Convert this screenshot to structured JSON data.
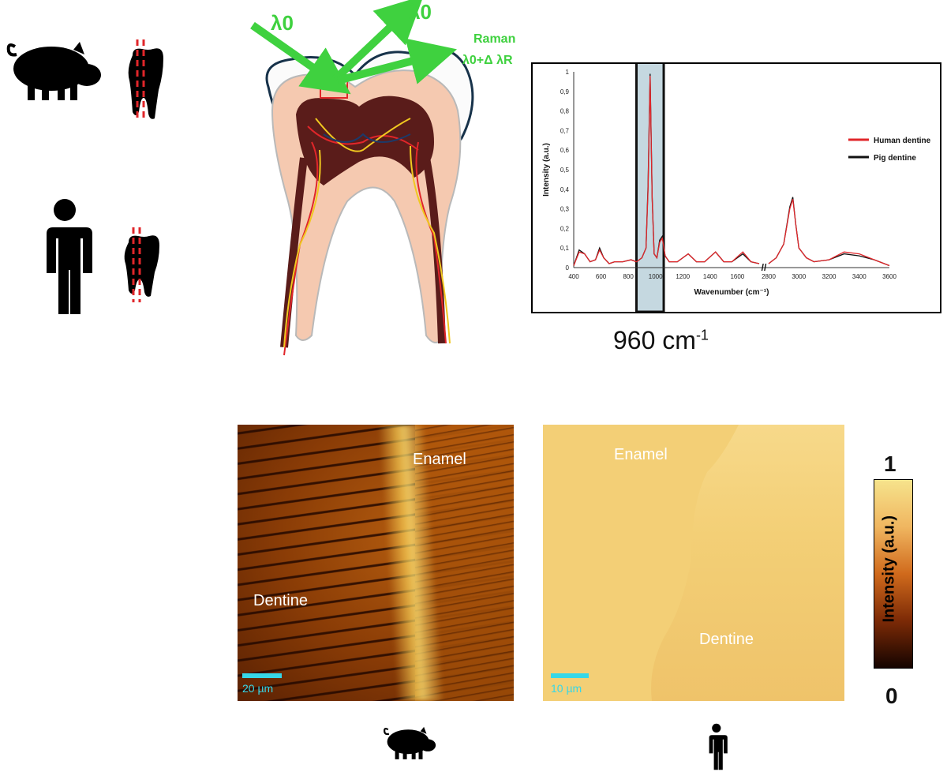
{
  "laser": {
    "incident": "λ0",
    "reflected": "λ0",
    "raman_label": "Raman",
    "raman_shift": "λ0+Δ λR"
  },
  "chart_data": {
    "type": "line",
    "xlabel": "Wavenumber (cm⁻¹)",
    "ylabel": "Intensity (a.u.)",
    "ylim": [
      0,
      1
    ],
    "y_ticks": [
      "0",
      "0,1",
      "0,2",
      "0,3",
      "0,4",
      "0,5",
      "0,6",
      "0,7",
      "0,8",
      "0,9",
      "1"
    ],
    "x_ticks": [
      "400",
      "600",
      "800",
      "1000",
      "1200",
      "1400",
      "1600",
      "2800",
      "3000",
      "3200",
      "3400",
      "3600"
    ],
    "axis_break": "//",
    "legend_position": "right",
    "highlight_band_label": "960 cm",
    "highlight_band_exponent": "-1",
    "series": [
      {
        "name": "Human dentine",
        "color": "#e0262a",
        "x": [
          400,
          440,
          480,
          520,
          560,
          590,
          620,
          660,
          700,
          760,
          820,
          860,
          900,
          930,
          945,
          960,
          975,
          990,
          1010,
          1030,
          1050,
          1070,
          1100,
          1160,
          1240,
          1300,
          1360,
          1440,
          1500,
          1560,
          1640,
          1700,
          1760,
          2800,
          2850,
          2900,
          2940,
          2960,
          2980,
          3000,
          3050,
          3100,
          3200,
          3300,
          3400,
          3500,
          3600
        ],
        "y": [
          0.01,
          0.08,
          0.07,
          0.03,
          0.04,
          0.09,
          0.05,
          0.02,
          0.03,
          0.03,
          0.04,
          0.03,
          0.05,
          0.1,
          0.4,
          0.98,
          0.35,
          0.07,
          0.05,
          0.13,
          0.15,
          0.06,
          0.03,
          0.03,
          0.07,
          0.03,
          0.03,
          0.08,
          0.03,
          0.03,
          0.08,
          0.03,
          0.02,
          0.02,
          0.05,
          0.12,
          0.3,
          0.35,
          0.22,
          0.1,
          0.05,
          0.03,
          0.04,
          0.08,
          0.07,
          0.04,
          0.01
        ]
      },
      {
        "name": "Pig dentine",
        "color": "#111111",
        "x": [
          400,
          440,
          480,
          520,
          560,
          590,
          620,
          660,
          700,
          760,
          820,
          860,
          900,
          930,
          945,
          960,
          975,
          990,
          1010,
          1030,
          1050,
          1070,
          1100,
          1160,
          1240,
          1300,
          1360,
          1440,
          1500,
          1560,
          1640,
          1700,
          1760,
          2800,
          2850,
          2900,
          2940,
          2960,
          2980,
          3000,
          3050,
          3100,
          3200,
          3300,
          3400,
          3500,
          3600
        ],
        "y": [
          0.01,
          0.09,
          0.07,
          0.03,
          0.04,
          0.1,
          0.05,
          0.02,
          0.03,
          0.03,
          0.04,
          0.03,
          0.05,
          0.1,
          0.42,
          0.99,
          0.36,
          0.07,
          0.05,
          0.14,
          0.16,
          0.06,
          0.03,
          0.03,
          0.07,
          0.03,
          0.03,
          0.08,
          0.03,
          0.03,
          0.07,
          0.03,
          0.02,
          0.02,
          0.05,
          0.12,
          0.31,
          0.36,
          0.22,
          0.1,
          0.05,
          0.03,
          0.04,
          0.07,
          0.06,
          0.04,
          0.01
        ]
      }
    ]
  },
  "maps": {
    "pig": {
      "enamel": "Enamel",
      "dentine": "Dentine",
      "scale": "20 µm"
    },
    "human": {
      "enamel": "Enamel",
      "dentine": "Dentine",
      "scale": "10 µm"
    }
  },
  "colorbar": {
    "max": "1",
    "min": "0",
    "title": "Intensity (a.u.)"
  },
  "colors": {
    "laser_green": "#3fd13f",
    "section_red": "#e0262a",
    "scale_cyan": "#36d7e8"
  },
  "icons": [
    "pig-icon",
    "tooth-icon",
    "person-icon"
  ]
}
